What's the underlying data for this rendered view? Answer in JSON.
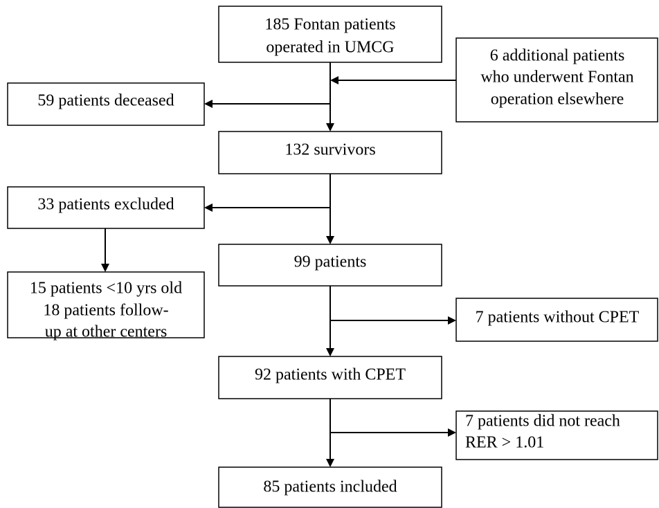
{
  "nodes": [
    {
      "lines": [
        "185 Fontan patients",
        "operated in UMCG"
      ]
    },
    {
      "lines": [
        "6 additional patients",
        "who underwent Fontan",
        "operation elsewhere"
      ]
    },
    {
      "lines": [
        "59 patients deceased"
      ]
    },
    {
      "lines": [
        "132 survivors"
      ]
    },
    {
      "lines": [
        "33 patients excluded"
      ]
    },
    {
      "lines": [
        "99 patients"
      ]
    },
    {
      "lines": [
        "15 patients <10 yrs old",
        "18 patients follow-",
        "up at other centers"
      ]
    },
    {
      "lines": [
        "7 patients without CPET"
      ]
    },
    {
      "lines": [
        "92 patients with CPET"
      ]
    },
    {
      "lines": [
        "7 patients did not reach",
        "RER > 1.01"
      ]
    },
    {
      "lines": [
        "85 patients included"
      ]
    }
  ]
}
